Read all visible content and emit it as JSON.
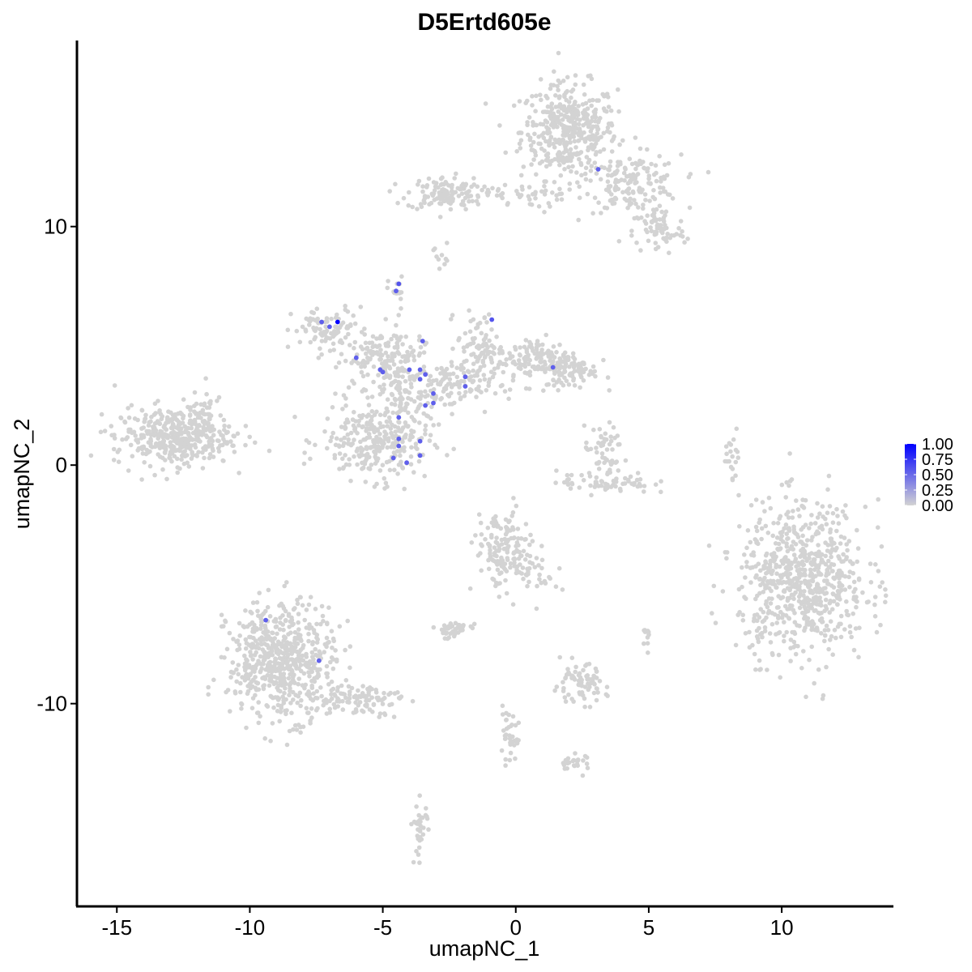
{
  "chart_data": {
    "type": "scatter",
    "title": "D5Ertd605e",
    "xlabel": "umapNC_1",
    "ylabel": "umapNC_2",
    "xlim": [
      -16.5,
      14.2
    ],
    "ylim": [
      -18.5,
      17.8
    ],
    "x_ticks": [
      -15,
      -10,
      -5,
      0,
      5,
      10
    ],
    "x_tick_labels": [
      "-15",
      "-10",
      "-5",
      "0",
      "5",
      "10"
    ],
    "y_ticks": [
      -10,
      0,
      10
    ],
    "y_tick_labels": [
      "-10",
      "0",
      "10"
    ],
    "grid": false,
    "legend": {
      "placement": "right",
      "type": "colorbar",
      "labels": [
        "1.00",
        "0.75",
        "0.50",
        "0.25",
        "0.00"
      ],
      "values": [
        1.0,
        0.75,
        0.5,
        0.25,
        0.0
      ],
      "color_low": "#d3d3d3",
      "color_high": "#0000ff"
    },
    "background_color": "#d3d3d3",
    "clusters": [
      {
        "cx": 2.0,
        "cy": 14.0,
        "sx": 0.9,
        "sy": 1.0,
        "n": 420
      },
      {
        "cx": 4.4,
        "cy": 11.8,
        "sx": 0.9,
        "sy": 0.6,
        "n": 160
      },
      {
        "cx": 5.4,
        "cy": 9.8,
        "sx": 0.5,
        "sy": 0.5,
        "n": 70
      },
      {
        "cx": -2.7,
        "cy": 11.4,
        "sx": 0.7,
        "sy": 0.35,
        "n": 120
      },
      {
        "cx": -0.2,
        "cy": 11.3,
        "sx": 1.0,
        "sy": 0.25,
        "n": 50
      },
      {
        "cx": -2.8,
        "cy": 8.9,
        "sx": 0.15,
        "sy": 0.3,
        "n": 10
      },
      {
        "cx": -4.5,
        "cy": 7.3,
        "sx": 0.15,
        "sy": 0.3,
        "n": 15
      },
      {
        "cx": -7.0,
        "cy": 5.6,
        "sx": 0.7,
        "sy": 0.5,
        "n": 90
      },
      {
        "cx": -5.2,
        "cy": 4.4,
        "sx": 0.7,
        "sy": 0.6,
        "n": 110
      },
      {
        "cx": -4.2,
        "cy": 3.2,
        "sx": 0.5,
        "sy": 1.4,
        "n": 150
      },
      {
        "cx": -5.3,
        "cy": 1.0,
        "sx": 1.0,
        "sy": 0.8,
        "n": 260
      },
      {
        "cx": -2.5,
        "cy": 3.3,
        "sx": 0.8,
        "sy": 0.5,
        "n": 110
      },
      {
        "cx": -1.4,
        "cy": 5.0,
        "sx": 0.4,
        "sy": 0.7,
        "n": 80
      },
      {
        "cx": 0.8,
        "cy": 4.4,
        "sx": 0.8,
        "sy": 0.5,
        "n": 140
      },
      {
        "cx": 2.1,
        "cy": 4.0,
        "sx": 0.5,
        "sy": 0.4,
        "n": 80
      },
      {
        "cx": -12.9,
        "cy": 1.2,
        "sx": 1.1,
        "sy": 0.6,
        "n": 380
      },
      {
        "cx": -11.8,
        "cy": 2.2,
        "sx": 0.4,
        "sy": 0.4,
        "n": 40
      },
      {
        "cx": 3.3,
        "cy": 0.6,
        "sx": 0.35,
        "sy": 0.5,
        "n": 50
      },
      {
        "cx": 3.3,
        "cy": -0.7,
        "sx": 0.9,
        "sy": 0.25,
        "n": 70
      },
      {
        "cx": 8.2,
        "cy": 0.4,
        "sx": 0.15,
        "sy": 0.5,
        "n": 20
      },
      {
        "cx": 10.8,
        "cy": -4.8,
        "sx": 1.2,
        "sy": 1.6,
        "n": 720
      },
      {
        "cx": -0.5,
        "cy": -3.6,
        "sx": 0.5,
        "sy": 0.8,
        "n": 150
      },
      {
        "cx": 0.8,
        "cy": -4.5,
        "sx": 0.4,
        "sy": 0.5,
        "n": 35
      },
      {
        "cx": -8.8,
        "cy": -8.2,
        "sx": 1.0,
        "sy": 1.2,
        "n": 600
      },
      {
        "cx": -6.0,
        "cy": -9.8,
        "sx": 0.9,
        "sy": 0.35,
        "n": 100
      },
      {
        "cx": -2.4,
        "cy": -6.9,
        "sx": 0.35,
        "sy": 0.18,
        "n": 40
      },
      {
        "cx": 2.4,
        "cy": -9.2,
        "sx": 0.5,
        "sy": 0.4,
        "n": 80
      },
      {
        "cx": -0.3,
        "cy": -11.4,
        "sx": 0.2,
        "sy": 0.5,
        "n": 35
      },
      {
        "cx": 2.2,
        "cy": -12.5,
        "sx": 0.3,
        "sy": 0.2,
        "n": 25
      },
      {
        "cx": -3.6,
        "cy": -15.2,
        "sx": 0.15,
        "sy": 0.6,
        "n": 35
      },
      {
        "cx": 5.0,
        "cy": -7.2,
        "sx": 0.1,
        "sy": 0.2,
        "n": 10
      }
    ],
    "expressing_points": [
      {
        "x": 3.1,
        "y": 12.4,
        "v": 0.55
      },
      {
        "x": -4.4,
        "y": 7.6,
        "v": 0.6
      },
      {
        "x": -4.5,
        "y": 7.3,
        "v": 0.55
      },
      {
        "x": -7.3,
        "y": 6.0,
        "v": 0.55
      },
      {
        "x": -7.0,
        "y": 5.8,
        "v": 0.55
      },
      {
        "x": -6.7,
        "y": 6.0,
        "v": 1.0
      },
      {
        "x": -0.9,
        "y": 6.1,
        "v": 0.6
      },
      {
        "x": -3.5,
        "y": 5.2,
        "v": 0.55
      },
      {
        "x": -6.0,
        "y": 4.5,
        "v": 0.55
      },
      {
        "x": -5.1,
        "y": 4.0,
        "v": 0.55
      },
      {
        "x": -5.0,
        "y": 3.9,
        "v": 0.55
      },
      {
        "x": -4.0,
        "y": 4.0,
        "v": 0.55
      },
      {
        "x": -3.6,
        "y": 4.0,
        "v": 0.55
      },
      {
        "x": -3.4,
        "y": 3.8,
        "v": 0.55
      },
      {
        "x": -3.6,
        "y": 3.6,
        "v": 0.55
      },
      {
        "x": -1.9,
        "y": 3.7,
        "v": 0.55
      },
      {
        "x": -1.9,
        "y": 3.3,
        "v": 0.55
      },
      {
        "x": 1.4,
        "y": 4.1,
        "v": 0.55
      },
      {
        "x": -3.1,
        "y": 3.0,
        "v": 0.55
      },
      {
        "x": -3.1,
        "y": 2.6,
        "v": 0.55
      },
      {
        "x": -3.4,
        "y": 2.5,
        "v": 0.55
      },
      {
        "x": -4.4,
        "y": 2.0,
        "v": 0.55
      },
      {
        "x": -4.4,
        "y": 1.1,
        "v": 0.55
      },
      {
        "x": -3.6,
        "y": 1.0,
        "v": 0.55
      },
      {
        "x": -4.4,
        "y": 0.8,
        "v": 0.55
      },
      {
        "x": -4.6,
        "y": 0.3,
        "v": 0.55
      },
      {
        "x": -3.6,
        "y": 0.4,
        "v": 0.55
      },
      {
        "x": -4.1,
        "y": 0.1,
        "v": 0.55
      },
      {
        "x": -9.4,
        "y": -6.5,
        "v": 0.55
      },
      {
        "x": -7.4,
        "y": -8.2,
        "v": 0.55
      }
    ]
  }
}
